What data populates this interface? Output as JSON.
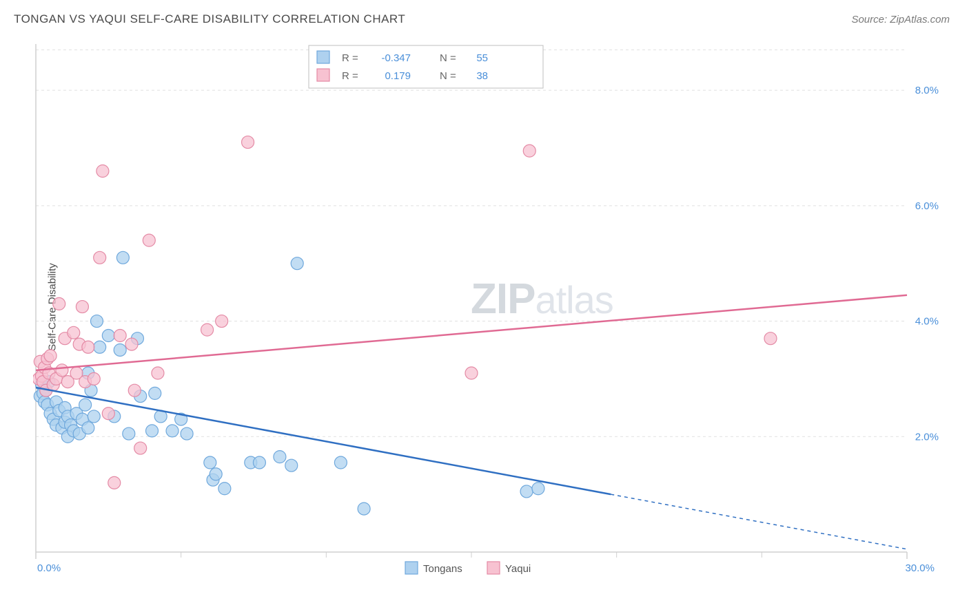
{
  "title": "TONGAN VS YAQUI SELF-CARE DISABILITY CORRELATION CHART",
  "source": "Source: ZipAtlas.com",
  "ylabel": "Self-Care Disability",
  "watermark": {
    "zip": "ZIP",
    "atlas": "atlas"
  },
  "chart": {
    "type": "scatter",
    "xlim": [
      0,
      30
    ],
    "ylim": [
      0,
      8.8
    ],
    "xticks_major": [
      0,
      30
    ],
    "xticks_minor": [
      5,
      10,
      15,
      20,
      25
    ],
    "yticks": [
      2,
      4,
      6,
      8
    ],
    "xtick_labels": {
      "0": "0.0%",
      "30": "30.0%"
    },
    "ytick_labels": {
      "2": "2.0%",
      "4": "4.0%",
      "6": "6.0%",
      "8": "8.0%"
    },
    "background_color": "#ffffff",
    "grid_color": "#e0e0e0",
    "axis_color": "#cfcfcf",
    "tick_label_color": "#4a8fd9",
    "marker_radius": 9,
    "marker_stroke_width": 1.2,
    "series": [
      {
        "name": "Tongans",
        "fill": "#aed1ef",
        "stroke": "#6fa8dc",
        "line_color": "#2f6fc2",
        "R": "-0.347",
        "N": "55",
        "trend": {
          "x1": 0,
          "y1": 2.85,
          "x2": 19.8,
          "y2": 1.0,
          "solid": true,
          "ext_x2": 30,
          "ext_y2": 0.05,
          "dash": "5,5"
        },
        "points": [
          [
            0.15,
            2.7
          ],
          [
            0.2,
            2.9
          ],
          [
            0.25,
            2.75
          ],
          [
            0.3,
            2.6
          ],
          [
            0.35,
            2.8
          ],
          [
            0.4,
            2.55
          ],
          [
            0.45,
            2.95
          ],
          [
            0.5,
            2.4
          ],
          [
            0.6,
            2.3
          ],
          [
            0.7,
            2.2
          ],
          [
            0.7,
            2.6
          ],
          [
            0.8,
            2.45
          ],
          [
            0.9,
            2.15
          ],
          [
            1.0,
            2.25
          ],
          [
            1.0,
            2.5
          ],
          [
            1.1,
            2.0
          ],
          [
            1.1,
            2.35
          ],
          [
            1.2,
            2.2
          ],
          [
            1.3,
            2.1
          ],
          [
            1.4,
            2.4
          ],
          [
            1.5,
            2.05
          ],
          [
            1.6,
            2.3
          ],
          [
            1.7,
            2.55
          ],
          [
            1.8,
            2.15
          ],
          [
            1.8,
            3.1
          ],
          [
            1.9,
            2.8
          ],
          [
            2.0,
            2.35
          ],
          [
            2.1,
            4.0
          ],
          [
            2.2,
            3.55
          ],
          [
            2.5,
            3.75
          ],
          [
            2.7,
            2.35
          ],
          [
            2.9,
            3.5
          ],
          [
            3.0,
            5.1
          ],
          [
            3.2,
            2.05
          ],
          [
            3.5,
            3.7
          ],
          [
            3.6,
            2.7
          ],
          [
            4.0,
            2.1
          ],
          [
            4.1,
            2.75
          ],
          [
            4.3,
            2.35
          ],
          [
            4.7,
            2.1
          ],
          [
            5.0,
            2.3
          ],
          [
            5.2,
            2.05
          ],
          [
            6.0,
            1.55
          ],
          [
            6.1,
            1.25
          ],
          [
            6.2,
            1.35
          ],
          [
            6.5,
            1.1
          ],
          [
            7.4,
            1.55
          ],
          [
            7.7,
            1.55
          ],
          [
            8.4,
            1.65
          ],
          [
            8.8,
            1.5
          ],
          [
            9.0,
            5.0
          ],
          [
            10.5,
            1.55
          ],
          [
            11.3,
            0.75
          ],
          [
            16.9,
            1.05
          ],
          [
            17.3,
            1.1
          ]
        ]
      },
      {
        "name": "Yaqui",
        "fill": "#f7c2d1",
        "stroke": "#e48aa5",
        "line_color": "#e06a93",
        "R": "0.179",
        "N": "38",
        "trend": {
          "x1": 0,
          "y1": 3.15,
          "x2": 30,
          "y2": 4.45,
          "solid": true
        },
        "points": [
          [
            0.1,
            3.0
          ],
          [
            0.15,
            3.3
          ],
          [
            0.2,
            3.05
          ],
          [
            0.25,
            2.95
          ],
          [
            0.3,
            3.2
          ],
          [
            0.35,
            2.8
          ],
          [
            0.4,
            3.35
          ],
          [
            0.45,
            3.1
          ],
          [
            0.5,
            3.4
          ],
          [
            0.6,
            2.9
          ],
          [
            0.7,
            3.0
          ],
          [
            0.8,
            4.3
          ],
          [
            0.9,
            3.15
          ],
          [
            1.0,
            3.7
          ],
          [
            1.1,
            2.95
          ],
          [
            1.3,
            3.8
          ],
          [
            1.4,
            3.1
          ],
          [
            1.5,
            3.6
          ],
          [
            1.6,
            4.25
          ],
          [
            1.7,
            2.95
          ],
          [
            1.8,
            3.55
          ],
          [
            2.0,
            3.0
          ],
          [
            2.2,
            5.1
          ],
          [
            2.3,
            6.6
          ],
          [
            2.5,
            2.4
          ],
          [
            2.7,
            1.2
          ],
          [
            2.9,
            3.75
          ],
          [
            3.3,
            3.6
          ],
          [
            3.4,
            2.8
          ],
          [
            3.6,
            1.8
          ],
          [
            3.9,
            5.4
          ],
          [
            4.2,
            3.1
          ],
          [
            5.9,
            3.85
          ],
          [
            6.4,
            4.0
          ],
          [
            7.3,
            7.1
          ],
          [
            15.0,
            3.1
          ],
          [
            17.0,
            6.95
          ],
          [
            25.3,
            3.7
          ]
        ]
      }
    ],
    "stats_box": {
      "border": "#bfbfbf",
      "bg": "#ffffff",
      "label_color": "#666",
      "value_color": "#4a8fd9"
    },
    "legend_bottom": {
      "text_color": "#555"
    }
  }
}
